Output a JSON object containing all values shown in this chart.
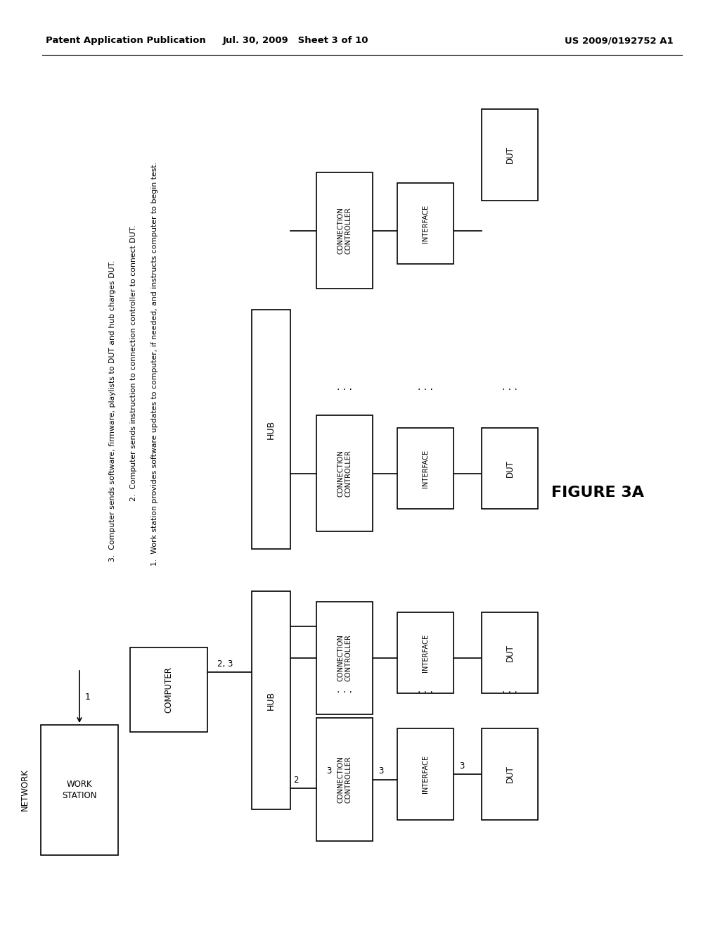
{
  "header_left": "Patent Application Publication",
  "header_mid": "Jul. 30, 2009   Sheet 3 of 10",
  "header_right": "US 2009/0192752 A1",
  "figure_label": "FIGURE 3A",
  "bg_color": "#ffffff"
}
